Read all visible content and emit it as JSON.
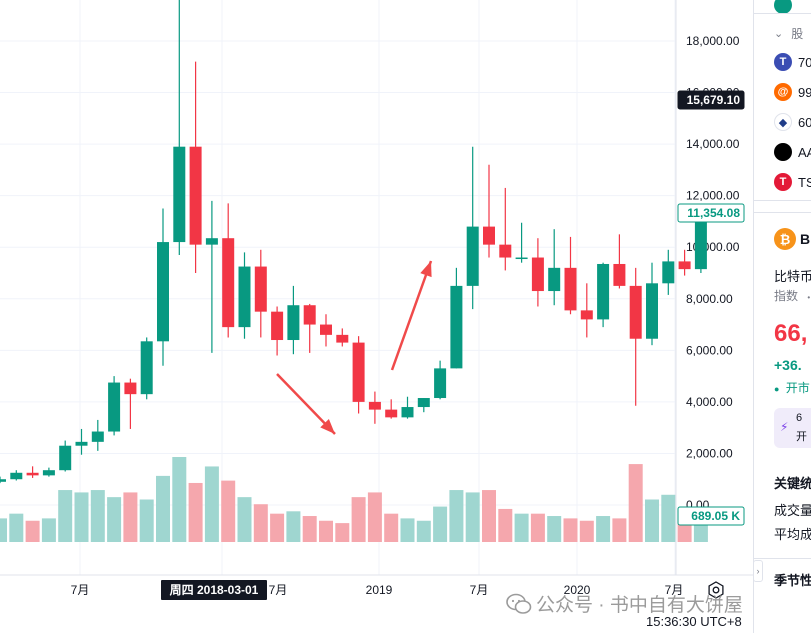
{
  "chart": {
    "price_axis_labels": [
      "18,000.00",
      "16,000.00",
      "14,000.00",
      "12,000.00",
      "10,000.00",
      "8,000.00",
      "6,000.00",
      "4,000.00",
      "2,000.00",
      "0.00"
    ],
    "current_price_badge": "15,679.10",
    "last_price_badge": "11,354.08",
    "volume_badge": "689.05 K",
    "time_labels": [
      "7月",
      "7月",
      "2019",
      "7月",
      "2020",
      "7月"
    ],
    "crosshair_time_label": "周四 2018-03-01",
    "colors": {
      "up": "#089981",
      "down": "#f23645",
      "vol_up": "#9fd6d0",
      "vol_down": "#f5a7ad",
      "arrow": "#f04a4a",
      "badge_dark": "#131722",
      "badge_teal": "#089981"
    }
  },
  "chart_data": {
    "type": "candlestick",
    "interval": "monthly",
    "ylim": [
      0,
      19500
    ],
    "candles": [
      {
        "o": 900,
        "h": 1100,
        "l": 850,
        "c": 1000,
        "v": 0.5
      },
      {
        "o": 1000,
        "h": 1350,
        "l": 950,
        "c": 1250,
        "v": 0.6
      },
      {
        "o": 1250,
        "h": 1500,
        "l": 1050,
        "c": 1150,
        "v": 0.45
      },
      {
        "o": 1150,
        "h": 1450,
        "l": 1100,
        "c": 1350,
        "v": 0.5
      },
      {
        "o": 1350,
        "h": 2500,
        "l": 1300,
        "c": 2300,
        "v": 1.1
      },
      {
        "o": 2300,
        "h": 2950,
        "l": 1950,
        "c": 2450,
        "v": 1.05
      },
      {
        "o": 2450,
        "h": 3300,
        "l": 2100,
        "c": 2850,
        "v": 1.1
      },
      {
        "o": 2850,
        "h": 5000,
        "l": 2700,
        "c": 4750,
        "v": 0.95
      },
      {
        "o": 4750,
        "h": 4900,
        "l": 2950,
        "c": 4300,
        "v": 1.05
      },
      {
        "o": 4300,
        "h": 6500,
        "l": 4100,
        "c": 6350,
        "v": 0.9
      },
      {
        "o": 6350,
        "h": 11500,
        "l": 5400,
        "c": 10200,
        "v": 1.4
      },
      {
        "o": 10200,
        "h": 19800,
        "l": 9700,
        "c": 13900,
        "v": 1.8
      },
      {
        "o": 13900,
        "h": 17200,
        "l": 9000,
        "c": 10100,
        "v": 1.25
      },
      {
        "o": 10100,
        "h": 11800,
        "l": 5900,
        "c": 10350,
        "v": 1.6
      },
      {
        "o": 10350,
        "h": 11700,
        "l": 6500,
        "c": 6900,
        "v": 1.3
      },
      {
        "o": 6900,
        "h": 9800,
        "l": 6450,
        "c": 9250,
        "v": 0.95
      },
      {
        "o": 9250,
        "h": 9900,
        "l": 6500,
        "c": 7500,
        "v": 0.8
      },
      {
        "o": 7500,
        "h": 7700,
        "l": 5800,
        "c": 6400,
        "v": 0.6
      },
      {
        "o": 6400,
        "h": 8500,
        "l": 5850,
        "c": 7750,
        "v": 0.65
      },
      {
        "o": 7750,
        "h": 7800,
        "l": 5900,
        "c": 7000,
        "v": 0.55
      },
      {
        "o": 7000,
        "h": 7400,
        "l": 6150,
        "c": 6600,
        "v": 0.45
      },
      {
        "o": 6600,
        "h": 6850,
        "l": 6150,
        "c": 6300,
        "v": 0.4
      },
      {
        "o": 6300,
        "h": 6550,
        "l": 3550,
        "c": 4000,
        "v": 0.95
      },
      {
        "o": 4000,
        "h": 4400,
        "l": 3150,
        "c": 3700,
        "v": 1.05
      },
      {
        "o": 3700,
        "h": 4100,
        "l": 3350,
        "c": 3400,
        "v": 0.6
      },
      {
        "o": 3400,
        "h": 4200,
        "l": 3350,
        "c": 3800,
        "v": 0.5
      },
      {
        "o": 3800,
        "h": 4150,
        "l": 3600,
        "c": 4150,
        "v": 0.45
      },
      {
        "o": 4150,
        "h": 5600,
        "l": 4100,
        "c": 5300,
        "v": 0.75
      },
      {
        "o": 5300,
        "h": 9200,
        "l": 5300,
        "c": 8500,
        "v": 1.1
      },
      {
        "o": 8500,
        "h": 13900,
        "l": 7600,
        "c": 10800,
        "v": 1.05
      },
      {
        "o": 10800,
        "h": 13200,
        "l": 9600,
        "c": 10100,
        "v": 1.1
      },
      {
        "o": 10100,
        "h": 12300,
        "l": 9100,
        "c": 9600,
        "v": 0.7
      },
      {
        "o": 9600,
        "h": 10950,
        "l": 9400,
        "c": 9600,
        "v": 0.6
      },
      {
        "o": 9600,
        "h": 10350,
        "l": 7700,
        "c": 8300,
        "v": 0.6
      },
      {
        "o": 8300,
        "h": 10700,
        "l": 7750,
        "c": 9200,
        "v": 0.55
      },
      {
        "o": 9200,
        "h": 10400,
        "l": 7400,
        "c": 7550,
        "v": 0.5
      },
      {
        "o": 7550,
        "h": 8600,
        "l": 6500,
        "c": 7200,
        "v": 0.45
      },
      {
        "o": 7200,
        "h": 9400,
        "l": 6900,
        "c": 9350,
        "v": 0.55
      },
      {
        "o": 9350,
        "h": 10500,
        "l": 8400,
        "c": 8500,
        "v": 0.5
      },
      {
        "o": 8500,
        "h": 9200,
        "l": 3850,
        "c": 6450,
        "v": 1.65
      },
      {
        "o": 6450,
        "h": 9400,
        "l": 6200,
        "c": 8600,
        "v": 0.9
      },
      {
        "o": 8600,
        "h": 9900,
        "l": 8150,
        "c": 9450,
        "v": 1.0
      },
      {
        "o": 9450,
        "h": 9900,
        "l": 8900,
        "c": 9150,
        "v": 0.6
      },
      {
        "o": 9150,
        "h": 11500,
        "l": 9000,
        "c": 11354,
        "v": 0.55
      }
    ]
  },
  "sidebar": {
    "watchlist_group_label": "股",
    "items": [
      {
        "sym": "70",
        "icon": "T",
        "color": "#3b4db3"
      },
      {
        "sym": "99",
        "icon": "@",
        "color": "#ff6a00"
      },
      {
        "sym": "60",
        "icon": "◆",
        "color": "#ffffff"
      },
      {
        "sym": "AA",
        "icon": "",
        "color": "#000000"
      },
      {
        "sym": "TS",
        "icon": "T",
        "color": "#e31937"
      }
    ],
    "detail_symbol_initial": "B",
    "detail_name": "比特币",
    "detail_type": "指数",
    "detail_price": "66,",
    "detail_change": "+36.",
    "detail_status": "开市",
    "promo_line1": "6",
    "promo_line2": "开",
    "key_stats_title": "关键统",
    "stat1": "成交量",
    "stat2": "平均成",
    "seasonal_title": "季节性"
  },
  "footer": {
    "clock": "15:36:30 UTC+8",
    "watermark": "公众号 · 书中自有大饼屋"
  }
}
